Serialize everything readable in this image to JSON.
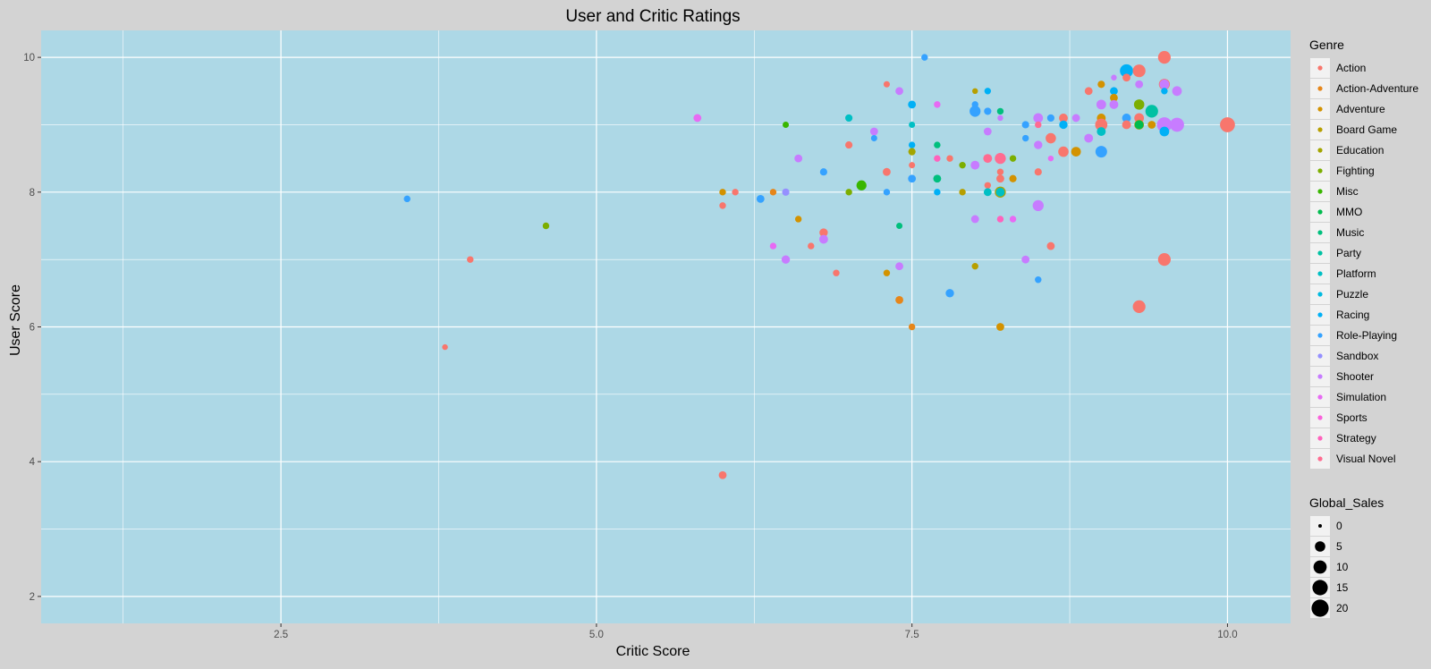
{
  "chart_data": {
    "type": "scatter",
    "title": "User and Critic Ratings",
    "xlabel": "Critic Score",
    "ylabel": "User Score",
    "xlim": [
      0.6,
      10.5
    ],
    "ylim": [
      1.6,
      10.4
    ],
    "x_ticks": [
      2.5,
      5.0,
      7.5,
      10.0
    ],
    "x_tick_labels": [
      "2.5",
      "5.0",
      "7.5",
      "10.0"
    ],
    "y_ticks": [
      2,
      4,
      6,
      8,
      10
    ],
    "y_tick_labels": [
      "2",
      "4",
      "6",
      "8",
      "10"
    ],
    "grid": true,
    "background": "#add8e6",
    "legend_position": "right",
    "color_legend": {
      "title": "Genre",
      "entries": [
        {
          "name": "Action",
          "color": "#f8766d"
        },
        {
          "name": "Action-Adventure",
          "color": "#e6861a"
        },
        {
          "name": "Adventure",
          "color": "#d39200"
        },
        {
          "name": "Board Game",
          "color": "#b79f00"
        },
        {
          "name": "Education",
          "color": "#a3a500"
        },
        {
          "name": "Fighting",
          "color": "#7cae00"
        },
        {
          "name": "Misc",
          "color": "#39b600"
        },
        {
          "name": "MMO",
          "color": "#00bb4e"
        },
        {
          "name": "Music",
          "color": "#00bf7d"
        },
        {
          "name": "Party",
          "color": "#00c1a3"
        },
        {
          "name": "Platform",
          "color": "#00bfc4"
        },
        {
          "name": "Puzzle",
          "color": "#00bae0"
        },
        {
          "name": "Racing",
          "color": "#00b0f6"
        },
        {
          "name": "Role-Playing",
          "color": "#35a2ff"
        },
        {
          "name": "Sandbox",
          "color": "#9590ff"
        },
        {
          "name": "Shooter",
          "color": "#c77cff"
        },
        {
          "name": "Simulation",
          "color": "#e76bf3"
        },
        {
          "name": "Sports",
          "color": "#fa62db"
        },
        {
          "name": "Strategy",
          "color": "#ff62bc"
        },
        {
          "name": "Visual Novel",
          "color": "#ff6c91"
        }
      ]
    },
    "size_legend": {
      "title": "Global_Sales",
      "values": [
        0,
        5,
        10,
        15,
        20
      ],
      "labels": [
        "0",
        "5",
        "10",
        "15",
        "20"
      ]
    },
    "points": [
      {
        "x": 3.5,
        "y": 7.9,
        "g": "Role-Playing",
        "s": 1
      },
      {
        "x": 3.8,
        "y": 5.7,
        "g": "Action",
        "s": 0.5
      },
      {
        "x": 4.0,
        "y": 7.0,
        "g": "Action",
        "s": 1
      },
      {
        "x": 4.6,
        "y": 7.5,
        "g": "Fighting",
        "s": 1
      },
      {
        "x": 5.8,
        "y": 9.1,
        "g": "Simulation",
        "s": 2
      },
      {
        "x": 6.0,
        "y": 8.0,
        "g": "Adventure",
        "s": 1
      },
      {
        "x": 6.0,
        "y": 7.8,
        "g": "Action",
        "s": 1
      },
      {
        "x": 6.1,
        "y": 8.0,
        "g": "Action",
        "s": 1
      },
      {
        "x": 6.0,
        "y": 3.8,
        "g": "Action",
        "s": 2
      },
      {
        "x": 6.3,
        "y": 7.9,
        "g": "Role-Playing",
        "s": 2
      },
      {
        "x": 6.4,
        "y": 8.0,
        "g": "Action-Adventure",
        "s": 1
      },
      {
        "x": 6.5,
        "y": 8.0,
        "g": "Sandbox",
        "s": 1.5
      },
      {
        "x": 6.5,
        "y": 9.0,
        "g": "Misc",
        "s": 0.8
      },
      {
        "x": 6.6,
        "y": 8.5,
        "g": "Shooter",
        "s": 2
      },
      {
        "x": 6.6,
        "y": 7.6,
        "g": "Adventure",
        "s": 1
      },
      {
        "x": 6.4,
        "y": 7.2,
        "g": "Simulation",
        "s": 1
      },
      {
        "x": 6.5,
        "y": 7.0,
        "g": "Shooter",
        "s": 2.5
      },
      {
        "x": 6.7,
        "y": 7.2,
        "g": "Action",
        "s": 1
      },
      {
        "x": 6.8,
        "y": 8.3,
        "g": "Role-Playing",
        "s": 1.5
      },
      {
        "x": 6.8,
        "y": 7.4,
        "g": "Action",
        "s": 2.5
      },
      {
        "x": 6.8,
        "y": 7.3,
        "g": "Shooter",
        "s": 3
      },
      {
        "x": 6.9,
        "y": 6.8,
        "g": "Action",
        "s": 1
      },
      {
        "x": 7.0,
        "y": 9.1,
        "g": "Platform",
        "s": 1.5
      },
      {
        "x": 7.0,
        "y": 8.7,
        "g": "Action",
        "s": 1.5
      },
      {
        "x": 7.0,
        "y": 8.0,
        "g": "Fighting",
        "s": 1
      },
      {
        "x": 7.1,
        "y": 8.1,
        "g": "Misc",
        "s": 4.5
      },
      {
        "x": 7.2,
        "y": 8.9,
        "g": "Shooter",
        "s": 2
      },
      {
        "x": 7.2,
        "y": 8.8,
        "g": "Role-Playing",
        "s": 0.8
      },
      {
        "x": 7.3,
        "y": 9.6,
        "g": "Action",
        "s": 0.8
      },
      {
        "x": 7.3,
        "y": 8.3,
        "g": "Action",
        "s": 2
      },
      {
        "x": 7.3,
        "y": 8.0,
        "g": "Role-Playing",
        "s": 1
      },
      {
        "x": 7.3,
        "y": 6.8,
        "g": "Adventure",
        "s": 1
      },
      {
        "x": 7.4,
        "y": 9.5,
        "g": "Shooter",
        "s": 2
      },
      {
        "x": 7.4,
        "y": 7.5,
        "g": "Music",
        "s": 0.8
      },
      {
        "x": 7.4,
        "y": 6.9,
        "g": "Shooter",
        "s": 2
      },
      {
        "x": 7.4,
        "y": 6.4,
        "g": "Action-Adventure",
        "s": 2
      },
      {
        "x": 7.5,
        "y": 9.3,
        "g": "Racing",
        "s": 2
      },
      {
        "x": 7.5,
        "y": 9.0,
        "g": "Platform",
        "s": 0.8
      },
      {
        "x": 7.5,
        "y": 8.7,
        "g": "Racing",
        "s": 1
      },
      {
        "x": 7.5,
        "y": 8.6,
        "g": "Education",
        "s": 1.5
      },
      {
        "x": 7.5,
        "y": 8.4,
        "g": "Action",
        "s": 0.8
      },
      {
        "x": 7.5,
        "y": 8.2,
        "g": "Role-Playing",
        "s": 2
      },
      {
        "x": 7.5,
        "y": 6.0,
        "g": "Action-Adventure",
        "s": 1
      },
      {
        "x": 7.6,
        "y": 10.0,
        "g": "Role-Playing",
        "s": 1
      },
      {
        "x": 7.7,
        "y": 9.3,
        "g": "Simulation",
        "s": 1
      },
      {
        "x": 7.7,
        "y": 8.7,
        "g": "Music",
        "s": 1
      },
      {
        "x": 7.7,
        "y": 8.5,
        "g": "Strategy",
        "s": 1
      },
      {
        "x": 7.7,
        "y": 8.2,
        "g": "Music",
        "s": 2
      },
      {
        "x": 7.7,
        "y": 8.0,
        "g": "Racing",
        "s": 1
      },
      {
        "x": 7.8,
        "y": 8.5,
        "g": "Action",
        "s": 1
      },
      {
        "x": 7.8,
        "y": 6.5,
        "g": "Role-Playing",
        "s": 2.5
      },
      {
        "x": 7.9,
        "y": 8.4,
        "g": "Fighting",
        "s": 1
      },
      {
        "x": 7.9,
        "y": 8.0,
        "g": "Board Game",
        "s": 1
      },
      {
        "x": 8.0,
        "y": 9.5,
        "g": "Board Game",
        "s": 0.5
      },
      {
        "x": 8.0,
        "y": 9.3,
        "g": "Role-Playing",
        "s": 1
      },
      {
        "x": 8.0,
        "y": 9.2,
        "g": "Role-Playing",
        "s": 6
      },
      {
        "x": 8.0,
        "y": 8.4,
        "g": "Shooter",
        "s": 3
      },
      {
        "x": 8.0,
        "y": 7.6,
        "g": "Shooter",
        "s": 2
      },
      {
        "x": 8.0,
        "y": 6.9,
        "g": "Board Game",
        "s": 1
      },
      {
        "x": 8.1,
        "y": 9.5,
        "g": "Racing",
        "s": 1
      },
      {
        "x": 8.1,
        "y": 9.2,
        "g": "Role-Playing",
        "s": 1.5
      },
      {
        "x": 8.1,
        "y": 8.9,
        "g": "Shooter",
        "s": 2
      },
      {
        "x": 8.1,
        "y": 8.5,
        "g": "Visual Novel",
        "s": 3
      },
      {
        "x": 8.1,
        "y": 8.1,
        "g": "Action",
        "s": 1
      },
      {
        "x": 8.1,
        "y": 8.0,
        "g": "Platform",
        "s": 2
      },
      {
        "x": 8.2,
        "y": 9.2,
        "g": "Music",
        "s": 1
      },
      {
        "x": 8.2,
        "y": 9.1,
        "g": "Shooter",
        "s": 0.5
      },
      {
        "x": 8.2,
        "y": 8.5,
        "g": "Visual Novel",
        "s": 6
      },
      {
        "x": 8.2,
        "y": 8.3,
        "g": "Action",
        "s": 1
      },
      {
        "x": 8.2,
        "y": 8.2,
        "g": "Action",
        "s": 2
      },
      {
        "x": 8.2,
        "y": 8.0,
        "g": "Board Game",
        "s": 6
      },
      {
        "x": 8.2,
        "y": 8.0,
        "g": "Platform",
        "s": 3
      },
      {
        "x": 8.2,
        "y": 7.6,
        "g": "Strategy",
        "s": 1
      },
      {
        "x": 8.2,
        "y": 6.0,
        "g": "Adventure",
        "s": 2
      },
      {
        "x": 8.3,
        "y": 8.5,
        "g": "Fighting",
        "s": 1
      },
      {
        "x": 8.3,
        "y": 8.2,
        "g": "Adventure",
        "s": 1.5
      },
      {
        "x": 8.3,
        "y": 7.6,
        "g": "Simulation",
        "s": 1
      },
      {
        "x": 8.4,
        "y": 9.0,
        "g": "Role-Playing",
        "s": 1.5
      },
      {
        "x": 8.4,
        "y": 8.8,
        "g": "Role-Playing",
        "s": 1
      },
      {
        "x": 8.4,
        "y": 7.0,
        "g": "Shooter",
        "s": 2
      },
      {
        "x": 8.5,
        "y": 9.1,
        "g": "Shooter",
        "s": 4
      },
      {
        "x": 8.5,
        "y": 9.0,
        "g": "Visual Novel",
        "s": 1
      },
      {
        "x": 8.5,
        "y": 8.7,
        "g": "Shooter",
        "s": 2.5
      },
      {
        "x": 8.5,
        "y": 8.3,
        "g": "Action",
        "s": 1.5
      },
      {
        "x": 8.5,
        "y": 7.8,
        "g": "Shooter",
        "s": 6
      },
      {
        "x": 8.5,
        "y": 6.7,
        "g": "Role-Playing",
        "s": 1
      },
      {
        "x": 8.6,
        "y": 9.1,
        "g": "Role-Playing",
        "s": 1.5
      },
      {
        "x": 8.6,
        "y": 8.8,
        "g": "Action",
        "s": 5
      },
      {
        "x": 8.6,
        "y": 8.5,
        "g": "Simulation",
        "s": 0.5
      },
      {
        "x": 8.6,
        "y": 7.2,
        "g": "Action",
        "s": 2
      },
      {
        "x": 8.7,
        "y": 9.1,
        "g": "Action",
        "s": 3
      },
      {
        "x": 8.7,
        "y": 9.0,
        "g": "Racing",
        "s": 2.5
      },
      {
        "x": 8.7,
        "y": 8.6,
        "g": "Action",
        "s": 5
      },
      {
        "x": 8.8,
        "y": 9.1,
        "g": "Shooter",
        "s": 2
      },
      {
        "x": 8.8,
        "y": 8.6,
        "g": "Adventure",
        "s": 4
      },
      {
        "x": 8.9,
        "y": 9.5,
        "g": "Action",
        "s": 2
      },
      {
        "x": 8.9,
        "y": 8.8,
        "g": "Shooter",
        "s": 3
      },
      {
        "x": 9.0,
        "y": 9.6,
        "g": "Adventure",
        "s": 1.5
      },
      {
        "x": 9.0,
        "y": 9.3,
        "g": "Shooter",
        "s": 4
      },
      {
        "x": 9.0,
        "y": 9.1,
        "g": "Adventure",
        "s": 3
      },
      {
        "x": 9.0,
        "y": 9.0,
        "g": "Action",
        "s": 8
      },
      {
        "x": 9.0,
        "y": 8.9,
        "g": "Platform",
        "s": 3
      },
      {
        "x": 9.0,
        "y": 8.6,
        "g": "Role-Playing",
        "s": 7
      },
      {
        "x": 9.1,
        "y": 9.7,
        "g": "Shooter",
        "s": 0.5
      },
      {
        "x": 9.1,
        "y": 9.5,
        "g": "Racing",
        "s": 2
      },
      {
        "x": 9.1,
        "y": 9.4,
        "g": "Adventure",
        "s": 2
      },
      {
        "x": 9.1,
        "y": 9.3,
        "g": "Shooter",
        "s": 3
      },
      {
        "x": 9.2,
        "y": 9.8,
        "g": "Racing",
        "s": 10
      },
      {
        "x": 9.2,
        "y": 9.7,
        "g": "Action",
        "s": 2
      },
      {
        "x": 9.2,
        "y": 9.1,
        "g": "Role-Playing",
        "s": 3
      },
      {
        "x": 9.2,
        "y": 9.0,
        "g": "Action",
        "s": 3
      },
      {
        "x": 9.3,
        "y": 9.8,
        "g": "Action",
        "s": 9
      },
      {
        "x": 9.3,
        "y": 9.6,
        "g": "Shooter",
        "s": 2
      },
      {
        "x": 9.3,
        "y": 9.3,
        "g": "Fighting",
        "s": 5
      },
      {
        "x": 9.3,
        "y": 9.1,
        "g": "Action",
        "s": 4
      },
      {
        "x": 9.3,
        "y": 9.0,
        "g": "Board Game",
        "s": 4
      },
      {
        "x": 9.3,
        "y": 9.0,
        "g": "MMO",
        "s": 3
      },
      {
        "x": 9.3,
        "y": 6.3,
        "g": "Action",
        "s": 9
      },
      {
        "x": 9.4,
        "y": 9.2,
        "g": "Party",
        "s": 9
      },
      {
        "x": 9.4,
        "y": 9.0,
        "g": "Adventure",
        "s": 2
      },
      {
        "x": 9.5,
        "y": 10.0,
        "g": "Action",
        "s": 9
      },
      {
        "x": 9.5,
        "y": 9.6,
        "g": "Action",
        "s": 6
      },
      {
        "x": 9.5,
        "y": 9.6,
        "g": "Shooter",
        "s": 4
      },
      {
        "x": 9.5,
        "y": 9.5,
        "g": "Racing",
        "s": 1
      },
      {
        "x": 9.5,
        "y": 9.0,
        "g": "Shooter",
        "s": 14
      },
      {
        "x": 9.5,
        "y": 8.9,
        "g": "Racing",
        "s": 4
      },
      {
        "x": 9.5,
        "y": 7.0,
        "g": "Action",
        "s": 9
      },
      {
        "x": 9.6,
        "y": 9.5,
        "g": "Shooter",
        "s": 4
      },
      {
        "x": 9.6,
        "y": 9.0,
        "g": "Shooter",
        "s": 12
      },
      {
        "x": 10.0,
        "y": 9.0,
        "g": "Action",
        "s": 14
      }
    ]
  }
}
